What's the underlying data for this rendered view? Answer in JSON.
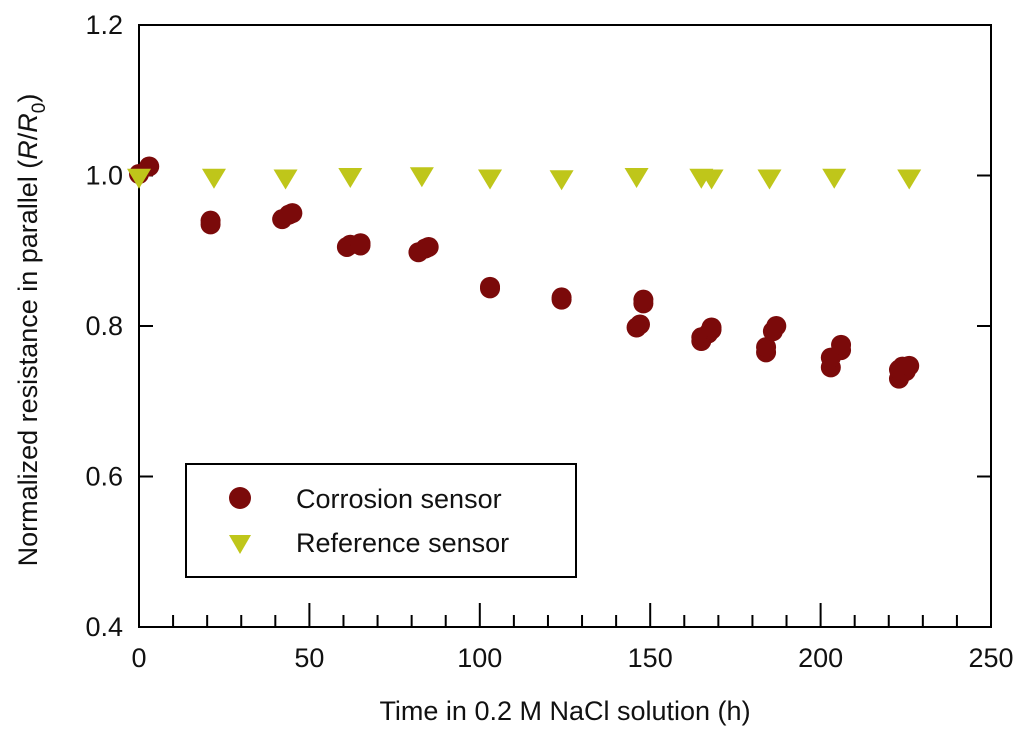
{
  "chart_data": {
    "type": "scatter",
    "title": "",
    "xlabel": "Time in 0.2 M NaCl solution (h)",
    "ylabel": {
      "prefix": "Normalized resistance in parallel (",
      "var1": "R",
      "slash": "/",
      "var2": "R",
      "sub": "0",
      "suffix": ")"
    },
    "xlim": [
      0,
      250
    ],
    "ylim": [
      0.4,
      1.2
    ],
    "xticks": [
      0,
      50,
      100,
      150,
      200,
      250
    ],
    "xtick_labels": [
      "0",
      "50",
      "100",
      "150",
      "200",
      "250"
    ],
    "xminor_step": 10,
    "yticks": [
      0.4,
      0.6,
      0.8,
      1.0,
      1.2
    ],
    "ytick_labels": [
      "0.4",
      "0.6",
      "0.8",
      "1.0",
      "1.2"
    ],
    "grid": false,
    "legend_position": "bottom-left",
    "series": [
      {
        "name": "Corrosion sensor",
        "marker": "circle",
        "color": "#7b0a0a",
        "points": [
          [
            0,
            1.002
          ],
          [
            3,
            1.012
          ],
          [
            21,
            0.935
          ],
          [
            21,
            0.94
          ],
          [
            42,
            0.942
          ],
          [
            44,
            0.948
          ],
          [
            45,
            0.95
          ],
          [
            61,
            0.905
          ],
          [
            62,
            0.908
          ],
          [
            65,
            0.907
          ],
          [
            65,
            0.91
          ],
          [
            82,
            0.898
          ],
          [
            84,
            0.903
          ],
          [
            85,
            0.905
          ],
          [
            103,
            0.85
          ],
          [
            103,
            0.852
          ],
          [
            124,
            0.835
          ],
          [
            124,
            0.838
          ],
          [
            146,
            0.798
          ],
          [
            147,
            0.802
          ],
          [
            148,
            0.83
          ],
          [
            148,
            0.835
          ],
          [
            165,
            0.78
          ],
          [
            165,
            0.785
          ],
          [
            167,
            0.79
          ],
          [
            168,
            0.795
          ],
          [
            168,
            0.798
          ],
          [
            184,
            0.765
          ],
          [
            184,
            0.772
          ],
          [
            186,
            0.793
          ],
          [
            187,
            0.8
          ],
          [
            203,
            0.745
          ],
          [
            203,
            0.758
          ],
          [
            206,
            0.768
          ],
          [
            206,
            0.775
          ],
          [
            223,
            0.73
          ],
          [
            223,
            0.742
          ],
          [
            224,
            0.746
          ],
          [
            225,
            0.74
          ],
          [
            226,
            0.747
          ]
        ]
      },
      {
        "name": "Reference sensor",
        "marker": "triangle-down",
        "color": "#bfc61a",
        "points": [
          [
            0,
            0.997
          ],
          [
            22,
            0.997
          ],
          [
            43,
            0.996
          ],
          [
            62,
            0.998
          ],
          [
            83,
            0.999
          ],
          [
            103,
            0.996
          ],
          [
            124,
            0.995
          ],
          [
            146,
            0.998
          ],
          [
            165,
            0.997
          ],
          [
            168,
            0.996
          ],
          [
            185,
            0.996
          ],
          [
            204,
            0.997
          ],
          [
            226,
            0.996
          ]
        ]
      }
    ]
  }
}
